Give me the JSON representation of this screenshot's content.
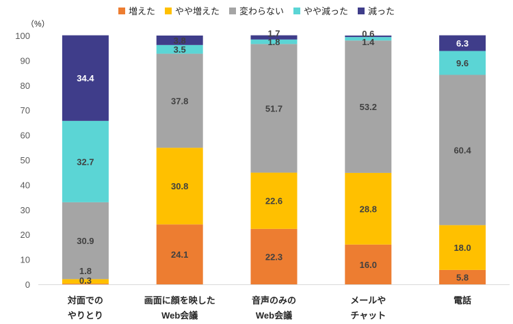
{
  "chart_data": {
    "type": "bar",
    "stacked": true,
    "unit_label": "（%）",
    "categories": [
      [
        "対面での",
        "やりとり"
      ],
      [
        "画面に顔を映した",
        "Web会議"
      ],
      [
        "音声のみの",
        "Web会議"
      ],
      [
        "メールや",
        "チャット"
      ],
      [
        "電話"
      ]
    ],
    "series": [
      {
        "name": "増えた",
        "color": "#ED7D31",
        "label_color": "#404040",
        "values": [
          0.3,
          24.1,
          22.3,
          16.0,
          5.8
        ]
      },
      {
        "name": "やや増えた",
        "color": "#FFC000",
        "label_color": "#404040",
        "values": [
          1.8,
          30.8,
          22.6,
          28.8,
          18.0
        ]
      },
      {
        "name": "変わらない",
        "color": "#A5A5A5",
        "label_color": "#404040",
        "values": [
          30.9,
          37.8,
          51.7,
          53.2,
          60.4
        ]
      },
      {
        "name": "やや減った",
        "color": "#5BD5D5",
        "label_color": "#404040",
        "values": [
          32.7,
          3.5,
          1.8,
          1.4,
          9.6
        ]
      },
      {
        "name": "減った",
        "color": "#3F3D8A",
        "label_color": "#ffffff",
        "values": [
          34.4,
          3.8,
          1.7,
          0.6,
          6.3
        ]
      }
    ],
    "ylim": [
      0,
      100
    ],
    "yticks": [
      0,
      10,
      20,
      30,
      40,
      50,
      60,
      70,
      80,
      90,
      100
    ],
    "legend_position": "top"
  }
}
